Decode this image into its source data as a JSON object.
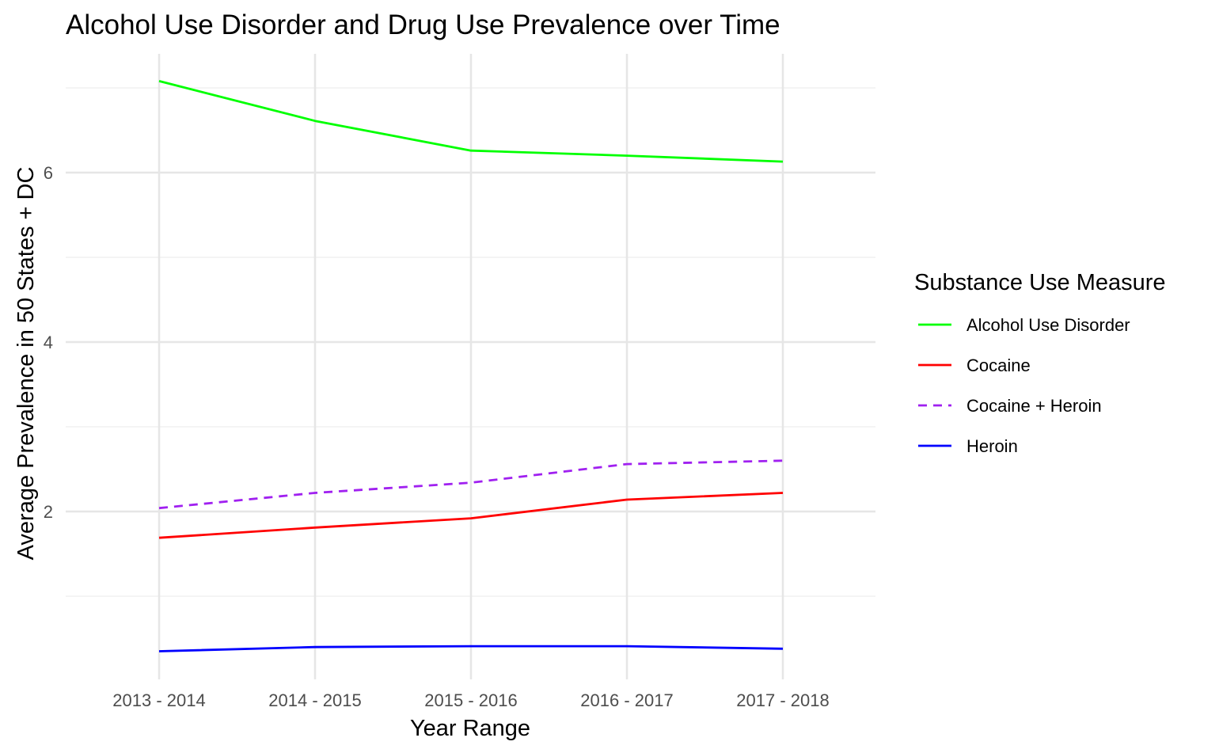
{
  "chart_data": {
    "type": "line",
    "title": "Alcohol Use Disorder and Drug Use Prevalence over Time",
    "xlabel": "Year Range",
    "ylabel": "Average Prevalence in 50 States + DC",
    "categories": [
      "2013 - 2014",
      "2014 - 2015",
      "2015 - 2016",
      "2016 - 2017",
      "2017 - 2018"
    ],
    "y_ticks": [
      2,
      4,
      6
    ],
    "y_tick_labels": [
      "2",
      "4",
      "6"
    ],
    "ylim": [
      0.35,
      7.45
    ],
    "grid": true,
    "legend": {
      "title": "Substance Use Measure",
      "position": "right"
    },
    "series": [
      {
        "name": "Alcohol Use Disorder",
        "values": [
          7.08,
          6.61,
          6.26,
          6.2,
          6.13
        ],
        "color": "#00ff00",
        "dash": "solid"
      },
      {
        "name": "Cocaine",
        "values": [
          1.69,
          1.81,
          1.92,
          2.14,
          2.22
        ],
        "color": "#ff0000",
        "dash": "solid"
      },
      {
        "name": "Cocaine + Heroin",
        "values": [
          2.04,
          2.22,
          2.34,
          2.56,
          2.6
        ],
        "color": "#a020f0",
        "dash": "dashed"
      },
      {
        "name": "Heroin",
        "values": [
          0.35,
          0.4,
          0.41,
          0.41,
          0.38
        ],
        "color": "#0000ff",
        "dash": "solid"
      }
    ]
  }
}
